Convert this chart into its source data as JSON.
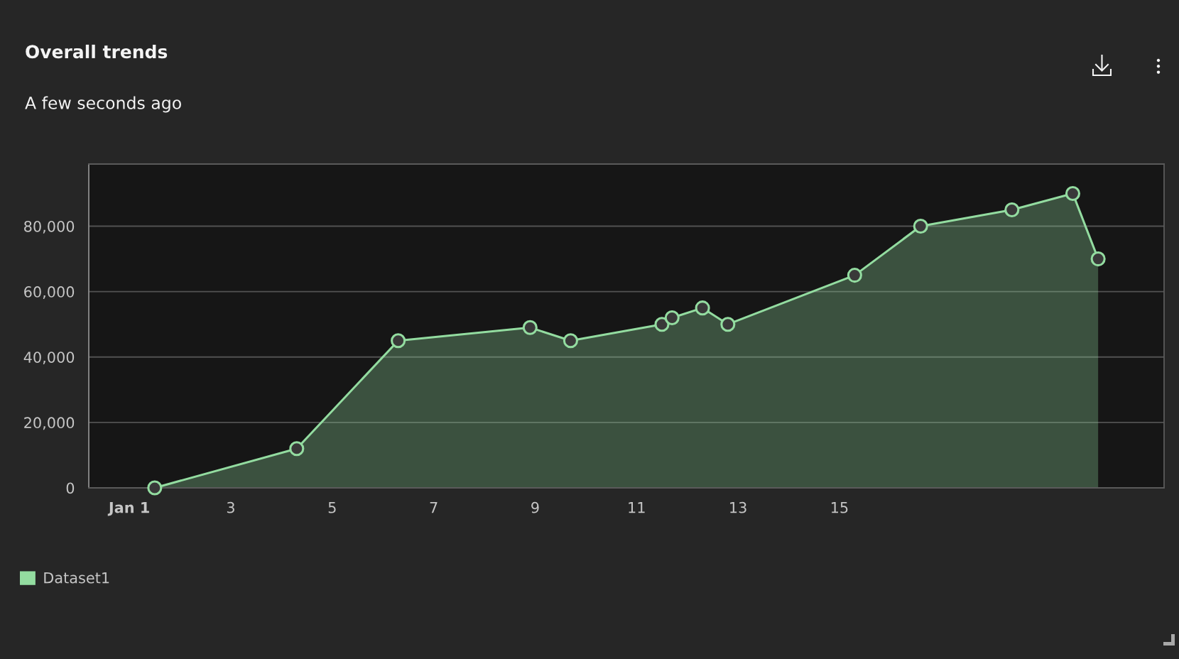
{
  "chart_data": {
    "type": "area",
    "title": "Overall trends",
    "subtitle": "A few seconds ago",
    "x": [
      1.5,
      4.3,
      6.3,
      8.9,
      9.7,
      11.5,
      11.7,
      12.3,
      12.8,
      15.3,
      16.6,
      18.4,
      19.6,
      20.1
    ],
    "series": [
      {
        "name": "Dataset1",
        "color": "#93dca0",
        "values": [
          0,
          12000,
          45000,
          49000,
          45000,
          50000,
          52000,
          55000,
          50000,
          65000,
          80000,
          85000,
          90000,
          70000
        ]
      }
    ],
    "xlim": [
      0.2,
      21.4
    ],
    "xticks": [
      {
        "value": 1,
        "label": "Jan 1"
      },
      3,
      5,
      7,
      9,
      11,
      13,
      15
    ],
    "ylim": [
      0,
      99000
    ],
    "yticks": [
      0,
      {
        "value": 20000,
        "label": "20,000"
      },
      {
        "value": 40000,
        "label": "40,000"
      },
      {
        "value": 60000,
        "label": "60,000"
      },
      {
        "value": 80000,
        "label": "80,000"
      }
    ],
    "grid": "y",
    "legend": "bottom left",
    "marker": "circle",
    "line_style": "solid"
  }
}
